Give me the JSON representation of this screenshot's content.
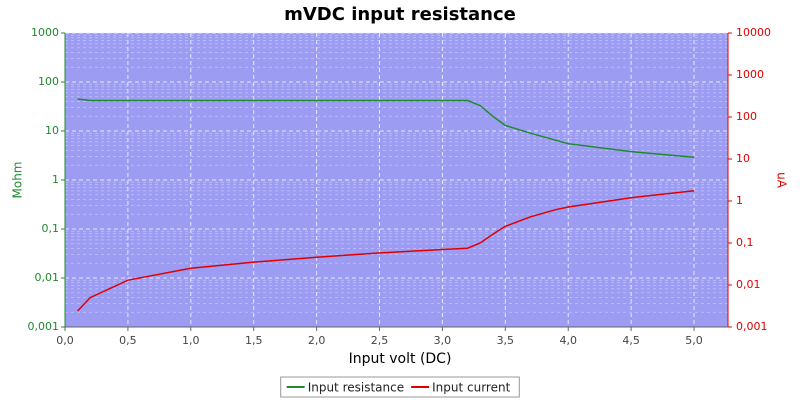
{
  "chart_data": {
    "type": "line",
    "title": "mVDC input resistance",
    "x_label": "Input volt (DC)",
    "y_label": "Mohm",
    "y2_label": "uA",
    "x": [
      0.1,
      0.2,
      0.5,
      1.0,
      1.5,
      2.0,
      2.5,
      3.0,
      3.2,
      3.3,
      3.4,
      3.5,
      3.7,
      3.9,
      4.0,
      4.5,
      5.0
    ],
    "series": [
      {
        "name": "Input resistance",
        "color": "#1f8a2e",
        "axis": "y",
        "values": [
          45,
          42,
          42,
          42,
          42,
          42,
          42,
          42,
          42,
          33,
          20,
          13,
          9,
          6.5,
          5.5,
          3.8,
          2.9
        ]
      },
      {
        "name": "Input current",
        "color": "#e00000",
        "axis": "y2",
        "values": [
          0.0024,
          0.005,
          0.013,
          0.025,
          0.035,
          0.046,
          0.058,
          0.07,
          0.075,
          0.1,
          0.16,
          0.25,
          0.42,
          0.62,
          0.72,
          1.2,
          1.75
        ]
      }
    ],
    "xlim": [
      0,
      5.27
    ],
    "xticks": [
      {
        "value": 0,
        "label": "0,0"
      },
      {
        "value": 0.5,
        "label": "0,5"
      },
      {
        "value": 1,
        "label": "1,0"
      },
      {
        "value": 1.5,
        "label": "1,5"
      },
      {
        "value": 2,
        "label": "2,0"
      },
      {
        "value": 2.5,
        "label": "2,5"
      },
      {
        "value": 3,
        "label": "3,0"
      },
      {
        "value": 3.5,
        "label": "3,5"
      },
      {
        "value": 4,
        "label": "4,0"
      },
      {
        "value": 4.5,
        "label": "4,5"
      },
      {
        "value": 5,
        "label": "5,0"
      }
    ],
    "ylim": [
      0.001,
      1000
    ],
    "y_scale": "log",
    "yticks": [
      {
        "value": 0.001,
        "label": "0,001"
      },
      {
        "value": 0.01,
        "label": "0,01"
      },
      {
        "value": 0.1,
        "label": "0,1"
      },
      1,
      10,
      100,
      1000
    ],
    "y2lim": [
      0.001,
      10000
    ],
    "y2_scale": "log",
    "y2ticks": [
      {
        "value": 0.001,
        "label": "0,001"
      },
      {
        "value": 0.01,
        "label": "0,01"
      },
      {
        "value": 0.1,
        "label": "0,1"
      },
      1,
      10,
      100,
      1000,
      10000
    ],
    "grid": true,
    "legend": "bottom",
    "background": "#9c9cf2"
  }
}
